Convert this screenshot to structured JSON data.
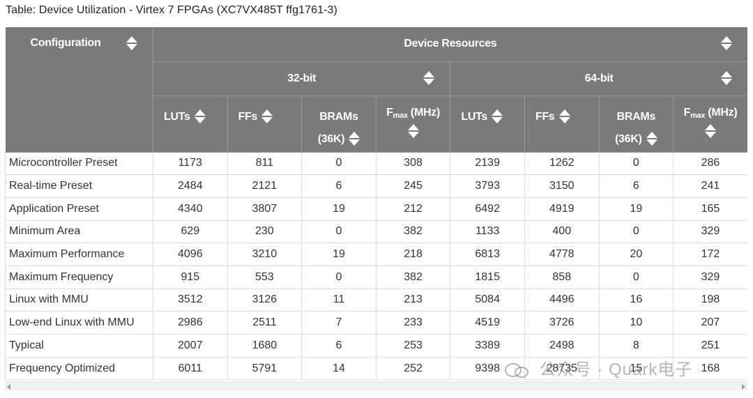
{
  "caption": "Table: Device Utilization - Virtex 7 FPGAs (XC7VX485T ffg1761-3)",
  "headers": {
    "configuration": "Configuration",
    "device_resources": "Device Resources",
    "group_32": "32-bit",
    "group_64": "64-bit",
    "luts": "LUTs",
    "ffs": "FFs",
    "brams_line1": "BRAMs",
    "brams_line2": "(36K)",
    "fmax_base": "F",
    "fmax_sub": "max",
    "fmax_unit": " (MHz)"
  },
  "icons": {
    "sort": "sort-icon",
    "scroll_left": "arrow-left-icon",
    "scroll_right": "arrow-right-icon",
    "watermark_logo": "wechat-logo-icon"
  },
  "rows": [
    {
      "name": "Microcontroller Preset",
      "v": [
        "1173",
        "811",
        "0",
        "308",
        "2139",
        "1262",
        "0",
        "286"
      ]
    },
    {
      "name": "Real-time Preset",
      "v": [
        "2484",
        "2121",
        "6",
        "245",
        "3793",
        "3150",
        "6",
        "241"
      ]
    },
    {
      "name": "Application Preset",
      "v": [
        "4340",
        "3807",
        "19",
        "212",
        "6492",
        "4919",
        "19",
        "165"
      ]
    },
    {
      "name": "Minimum Area",
      "v": [
        "629",
        "230",
        "0",
        "382",
        "1133",
        "400",
        "0",
        "329"
      ]
    },
    {
      "name": "Maximum Performance",
      "v": [
        "4096",
        "3210",
        "19",
        "218",
        "6813",
        "4778",
        "20",
        "172"
      ]
    },
    {
      "name": "Maximum Frequency",
      "v": [
        "915",
        "553",
        "0",
        "382",
        "1815",
        "858",
        "0",
        "329"
      ]
    },
    {
      "name": "Linux with MMU",
      "v": [
        "3512",
        "3126",
        "11",
        "213",
        "5084",
        "4496",
        "16",
        "198"
      ]
    },
    {
      "name": "Low-end Linux with MMU",
      "v": [
        "2986",
        "2511",
        "7",
        "233",
        "4519",
        "3726",
        "10",
        "207"
      ]
    },
    {
      "name": "Typical",
      "v": [
        "2007",
        "1680",
        "6",
        "253",
        "3389",
        "2498",
        "8",
        "251"
      ]
    },
    {
      "name": "Frequency Optimized",
      "v": [
        "6011",
        "5791",
        "14",
        "252",
        "9398",
        "28735",
        "15",
        "168"
      ]
    }
  ],
  "watermark": "公众号 · Quark电子",
  "colors": {
    "header_bg": "#7a7a7a",
    "header_text": "#ffffff",
    "grid": "#dddddd"
  }
}
